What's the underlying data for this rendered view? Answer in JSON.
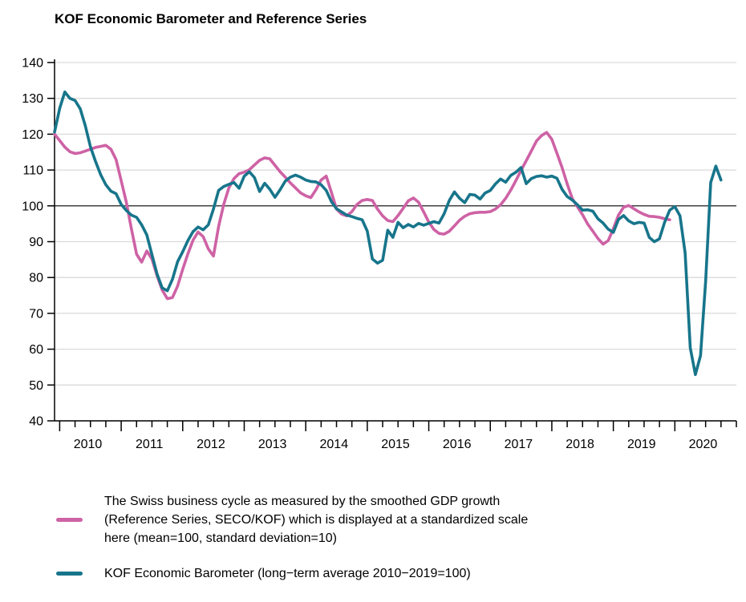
{
  "title": "KOF Economic Barometer and Reference Series",
  "chart_data": {
    "type": "line",
    "title": "KOF Economic Barometer and Reference Series",
    "x_start": "2009-12",
    "frequency": "monthly",
    "x_axis": {
      "year_labels": [
        "2010",
        "2011",
        "2012",
        "2013",
        "2014",
        "2015",
        "2016",
        "2017",
        "2018",
        "2019",
        "2020"
      ],
      "minor_ticks": "quarterly"
    },
    "y_axis": {
      "min": 40,
      "max": 140,
      "ticks": [
        140,
        130,
        120,
        110,
        100,
        90,
        80,
        70,
        60,
        50,
        40
      ],
      "reference_line": 100
    },
    "grid": "horizontal-light-gray",
    "legend_position": "below",
    "series": [
      {
        "name": "Reference Series (SECO/KOF)",
        "color": "#ce62a5",
        "start": "2009-12",
        "end": "2019-12",
        "values": [
          120.0,
          118.2,
          116.4,
          115.1,
          114.6,
          114.8,
          115.3,
          115.8,
          116.3,
          116.6,
          116.9,
          115.8,
          112.9,
          107.0,
          101.0,
          93.5,
          86.5,
          84.3,
          87.4,
          85.2,
          80.5,
          76.5,
          74.1,
          74.4,
          77.6,
          82.3,
          86.6,
          90.4,
          92.7,
          91.4,
          88.0,
          86.0,
          94.2,
          100.4,
          105.0,
          107.6,
          109.0,
          109.4,
          110.1,
          111.4,
          112.7,
          113.4,
          113.1,
          111.3,
          109.5,
          108.0,
          106.4,
          105.0,
          103.6,
          102.8,
          102.3,
          104.5,
          107.2,
          108.3,
          103.8,
          99.1,
          97.7,
          97.2,
          98.4,
          100.4,
          101.5,
          101.8,
          101.5,
          99.1,
          97.2,
          95.9,
          95.6,
          97.3,
          99.3,
          101.4,
          102.2,
          101.0,
          98.3,
          95.5,
          93.4,
          92.3,
          92.1,
          92.9,
          94.4,
          96.0,
          97.1,
          97.8,
          98.1,
          98.2,
          98.2,
          98.4,
          99.1,
          100.3,
          102.1,
          104.4,
          107.1,
          109.9,
          112.6,
          115.3,
          118.1,
          119.6,
          120.5,
          118.6,
          114.7,
          110.7,
          106.1,
          102.0,
          99.7,
          97.5,
          94.9,
          92.9,
          90.9,
          89.3,
          90.3,
          93.6,
          97.4,
          99.6,
          100.1,
          99.2,
          98.3,
          97.6,
          97.1,
          97.0,
          96.8,
          96.4,
          96.1
        ]
      },
      {
        "name": "KOF Economic Barometer",
        "color": "#17758b",
        "start": "2009-12",
        "end": "2020-10",
        "values": [
          120.6,
          127.2,
          131.8,
          130.0,
          129.4,
          127.1,
          122.4,
          116.5,
          112.4,
          108.7,
          105.9,
          104.1,
          103.4,
          100.4,
          98.7,
          97.4,
          96.8,
          94.7,
          91.9,
          86.4,
          81.0,
          77.1,
          76.3,
          79.5,
          84.4,
          87.2,
          90.3,
          92.8,
          94.1,
          93.3,
          94.7,
          99.1,
          104.3,
          105.4,
          106.0,
          106.5,
          104.9,
          108.3,
          109.5,
          107.9,
          104.0,
          106.3,
          104.6,
          102.4,
          104.5,
          106.9,
          108.0,
          108.6,
          108.0,
          107.2,
          106.8,
          106.7,
          105.9,
          104.3,
          101.2,
          99.2,
          98.3,
          97.4,
          97.0,
          96.5,
          96.1,
          93.0,
          85.2,
          84.0,
          84.8,
          93.2,
          91.2,
          95.4,
          93.9,
          94.8,
          94.1,
          95.1,
          94.6,
          95.1,
          95.6,
          95.2,
          97.8,
          101.5,
          103.9,
          102.1,
          100.9,
          103.2,
          103.0,
          101.9,
          103.6,
          104.3,
          106.1,
          107.5,
          106.6,
          108.5,
          109.4,
          110.7,
          106.2,
          107.6,
          108.2,
          108.4,
          108.0,
          108.3,
          107.7,
          104.6,
          102.6,
          101.6,
          100.3,
          98.8,
          98.9,
          98.5,
          96.4,
          95.2,
          93.5,
          92.6,
          96.2,
          97.3,
          95.8,
          95.0,
          95.4,
          95.2,
          91.2,
          90.0,
          90.8,
          95.4,
          98.8,
          99.8,
          97.2,
          86.9,
          60.4,
          52.9,
          58.2,
          79.0,
          106.5,
          111.1,
          107.2
        ]
      }
    ],
    "legend": [
      {
        "series": "Reference Series (SECO/KOF)",
        "color": "#ce62a5",
        "lines": [
          "The Swiss business cycle as measured by the smoothed GDP growth",
          "(Reference Series, SECO/KOF) which is displayed at a standardized scale",
          "here (mean=100, standard deviation=10)"
        ]
      },
      {
        "series": "KOF Economic Barometer",
        "color": "#17758b",
        "lines": [
          "KOF Economic Barometer (long−term average 2010−2019=100)"
        ]
      }
    ]
  }
}
